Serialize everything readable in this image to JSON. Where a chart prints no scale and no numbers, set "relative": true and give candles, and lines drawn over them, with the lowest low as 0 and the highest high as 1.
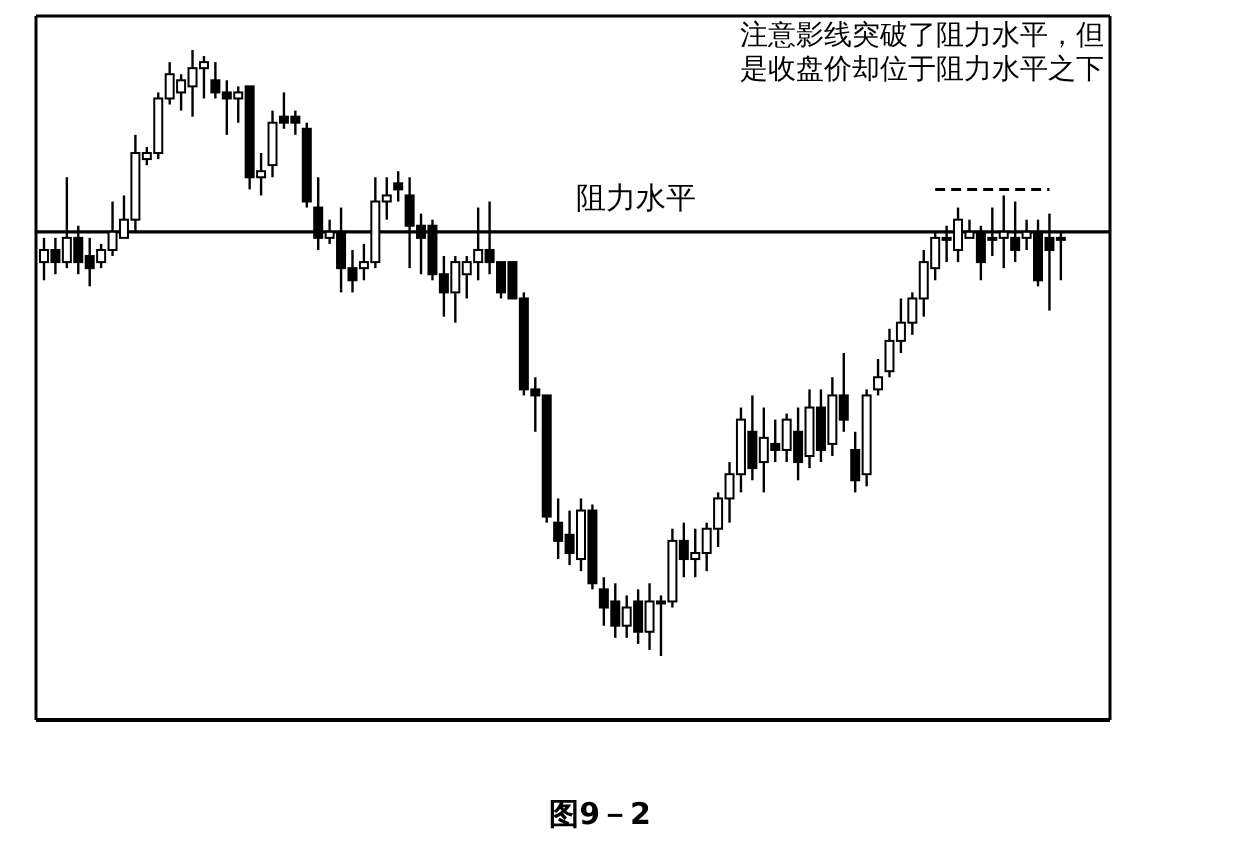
{
  "chart_data": {
    "type": "candlestick",
    "relative": true,
    "categories": [
      null,
      null,
      null,
      null,
      null,
      null,
      null,
      null,
      null,
      null,
      null,
      null,
      null,
      null,
      null,
      null,
      null,
      null,
      null,
      null,
      null,
      null,
      null,
      null,
      null,
      null,
      null,
      null,
      null,
      null,
      null,
      null,
      null,
      null,
      null,
      null,
      null,
      null,
      null,
      null,
      null,
      null,
      null,
      null,
      null,
      null,
      null,
      null,
      null,
      null,
      null,
      null,
      null,
      null,
      null,
      null,
      null,
      null,
      null,
      null,
      null,
      null,
      null,
      null,
      null,
      null,
      null,
      null,
      null,
      null,
      null,
      null,
      null,
      null,
      null,
      null,
      null,
      null,
      null,
      null,
      null,
      null,
      null,
      null,
      null,
      null,
      null,
      null,
      null,
      null
    ],
    "ohlc": [
      [
        0.65,
        0.69,
        0.62,
        0.67
      ],
      [
        0.67,
        0.69,
        0.63,
        0.65
      ],
      [
        0.65,
        0.79,
        0.64,
        0.69
      ],
      [
        0.69,
        0.71,
        0.63,
        0.65
      ],
      [
        0.66,
        0.69,
        0.61,
        0.64
      ],
      [
        0.65,
        0.68,
        0.64,
        0.67
      ],
      [
        0.67,
        0.75,
        0.66,
        0.7
      ],
      [
        0.69,
        0.76,
        0.69,
        0.72
      ],
      [
        0.72,
        0.86,
        0.7,
        0.83
      ],
      [
        0.82,
        0.84,
        0.81,
        0.83
      ],
      [
        0.83,
        0.93,
        0.82,
        0.92
      ],
      [
        0.92,
        0.98,
        0.91,
        0.96
      ],
      [
        0.93,
        0.96,
        0.9,
        0.95
      ],
      [
        0.94,
        1.0,
        0.89,
        0.97
      ],
      [
        0.97,
        0.99,
        0.92,
        0.98
      ],
      [
        0.95,
        0.98,
        0.92,
        0.93
      ],
      [
        0.93,
        0.95,
        0.86,
        0.92
      ],
      [
        0.92,
        0.94,
        0.88,
        0.93
      ],
      [
        0.94,
        0.94,
        0.77,
        0.79
      ],
      [
        0.79,
        0.83,
        0.76,
        0.8
      ],
      [
        0.81,
        0.9,
        0.79,
        0.88
      ],
      [
        0.89,
        0.93,
        0.87,
        0.88
      ],
      [
        0.89,
        0.9,
        0.86,
        0.88
      ],
      [
        0.87,
        0.88,
        0.74,
        0.75
      ],
      [
        0.74,
        0.79,
        0.67,
        0.69
      ],
      [
        0.69,
        0.72,
        0.68,
        0.7
      ],
      [
        0.7,
        0.74,
        0.6,
        0.64
      ],
      [
        0.64,
        0.67,
        0.6,
        0.62
      ],
      [
        0.64,
        0.68,
        0.62,
        0.65
      ],
      [
        0.65,
        0.79,
        0.64,
        0.75
      ],
      [
        0.75,
        0.79,
        0.72,
        0.76
      ],
      [
        0.78,
        0.8,
        0.75,
        0.77
      ],
      [
        0.76,
        0.79,
        0.64,
        0.71
      ],
      [
        0.71,
        0.73,
        0.63,
        0.69
      ],
      [
        0.71,
        0.72,
        0.62,
        0.63
      ],
      [
        0.63,
        0.66,
        0.56,
        0.6
      ],
      [
        0.6,
        0.66,
        0.55,
        0.65
      ],
      [
        0.63,
        0.66,
        0.59,
        0.65
      ],
      [
        0.65,
        0.74,
        0.62,
        0.67
      ],
      [
        0.67,
        0.75,
        0.63,
        0.65
      ],
      [
        0.65,
        0.65,
        0.59,
        0.6
      ],
      [
        0.65,
        0.65,
        0.59,
        0.59
      ],
      [
        0.59,
        0.6,
        0.43,
        0.44
      ],
      [
        0.44,
        0.46,
        0.37,
        0.43
      ],
      [
        0.43,
        0.43,
        0.22,
        0.23
      ],
      [
        0.22,
        0.26,
        0.16,
        0.19
      ],
      [
        0.2,
        0.24,
        0.15,
        0.17
      ],
      [
        0.16,
        0.26,
        0.14,
        0.24
      ],
      [
        0.24,
        0.25,
        0.11,
        0.12
      ],
      [
        0.11,
        0.13,
        0.05,
        0.08
      ],
      [
        0.09,
        0.12,
        0.03,
        0.05
      ],
      [
        0.05,
        0.1,
        0.03,
        0.08
      ],
      [
        0.09,
        0.11,
        0.02,
        0.04
      ],
      [
        0.04,
        0.12,
        0.01,
        0.09
      ],
      [
        0.09,
        0.1,
        0.0,
        0.09
      ],
      [
        0.09,
        0.21,
        0.08,
        0.19
      ],
      [
        0.19,
        0.22,
        0.13,
        0.16
      ],
      [
        0.16,
        0.21,
        0.13,
        0.17
      ],
      [
        0.17,
        0.22,
        0.14,
        0.21
      ],
      [
        0.21,
        0.27,
        0.18,
        0.26
      ],
      [
        0.26,
        0.32,
        0.22,
        0.3
      ],
      [
        0.3,
        0.41,
        0.27,
        0.39
      ],
      [
        0.37,
        0.43,
        0.29,
        0.31
      ],
      [
        0.32,
        0.41,
        0.27,
        0.36
      ],
      [
        0.35,
        0.39,
        0.32,
        0.34
      ],
      [
        0.34,
        0.4,
        0.32,
        0.39
      ],
      [
        0.37,
        0.41,
        0.29,
        0.32
      ],
      [
        0.33,
        0.44,
        0.31,
        0.41
      ],
      [
        0.41,
        0.44,
        0.32,
        0.34
      ],
      [
        0.35,
        0.46,
        0.33,
        0.43
      ],
      [
        0.43,
        0.5,
        0.37,
        0.39
      ],
      [
        0.34,
        0.37,
        0.27,
        0.29
      ],
      [
        0.3,
        0.44,
        0.28,
        0.43
      ],
      [
        0.44,
        0.49,
        0.43,
        0.46
      ],
      [
        0.47,
        0.54,
        0.46,
        0.52
      ],
      [
        0.52,
        0.59,
        0.5,
        0.55
      ],
      [
        0.55,
        0.6,
        0.53,
        0.59
      ],
      [
        0.59,
        0.67,
        0.56,
        0.65
      ],
      [
        0.64,
        0.7,
        0.62,
        0.69
      ],
      [
        0.69,
        0.71,
        0.65,
        0.69
      ],
      [
        0.67,
        0.74,
        0.65,
        0.72
      ],
      [
        0.69,
        0.72,
        0.69,
        0.7
      ],
      [
        0.7,
        0.71,
        0.62,
        0.65
      ],
      [
        0.69,
        0.74,
        0.66,
        0.69
      ],
      [
        0.69,
        0.76,
        0.64,
        0.7
      ],
      [
        0.69,
        0.75,
        0.65,
        0.67
      ],
      [
        0.69,
        0.72,
        0.67,
        0.7
      ],
      [
        0.7,
        0.72,
        0.61,
        0.62
      ],
      [
        0.69,
        0.73,
        0.57,
        0.67
      ],
      [
        0.69,
        0.7,
        0.62,
        0.69
      ]
    ],
    "series": [
      {
        "type": "line",
        "line_style": "dashed",
        "color": "#000000",
        "values": [
          null,
          null,
          null,
          null,
          null,
          null,
          null,
          null,
          null,
          null,
          null,
          null,
          null,
          null,
          null,
          null,
          null,
          null,
          null,
          null,
          null,
          null,
          null,
          null,
          null,
          null,
          null,
          null,
          null,
          null,
          null,
          null,
          null,
          null,
          null,
          null,
          null,
          null,
          null,
          null,
          null,
          null,
          null,
          null,
          null,
          null,
          null,
          null,
          null,
          null,
          null,
          null,
          null,
          null,
          null,
          null,
          null,
          null,
          null,
          null,
          null,
          null,
          null,
          null,
          null,
          null,
          null,
          null,
          null,
          null,
          null,
          null,
          null,
          null,
          null,
          null,
          null,
          null,
          0.77,
          0.77,
          0.77,
          0.77,
          0.77,
          0.77,
          0.77,
          0.77,
          0.77,
          0.77,
          0.77,
          null
        ]
      }
    ],
    "ref_lines": [
      {
        "axis": "y",
        "value": 0.7,
        "label": "阻力水平",
        "color": "#000000"
      }
    ],
    "annotations": [
      "注意影线突破了阻力水平，但是收盘价却位于阻力水平之下",
      "图9－2"
    ]
  }
}
